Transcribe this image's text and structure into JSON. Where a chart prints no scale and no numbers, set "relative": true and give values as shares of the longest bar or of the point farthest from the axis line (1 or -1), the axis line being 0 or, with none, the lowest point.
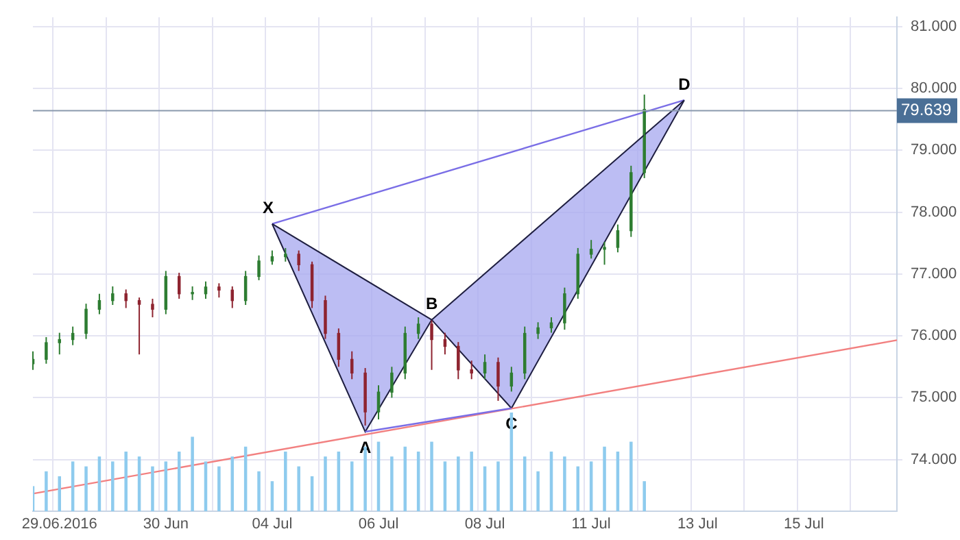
{
  "chart_data": [
    {
      "type": "candlestick",
      "categories": [
        null,
        null,
        "29.06.2016",
        null,
        null,
        null,
        null,
        null,
        null,
        null,
        "30 Jun",
        null,
        null,
        null,
        null,
        null,
        null,
        null,
        "04 Jul",
        null,
        null,
        null,
        null,
        null,
        null,
        null,
        "06 Jul",
        null,
        null,
        null,
        null,
        null,
        null,
        null,
        "08 Jul",
        null,
        null,
        null,
        null,
        null,
        null,
        null,
        "11 Jul",
        null,
        null,
        null,
        null,
        null,
        null,
        null,
        "13 Jul",
        null,
        null,
        null,
        null,
        null,
        null,
        null,
        "15 Jul",
        null,
        null,
        null,
        null,
        null,
        null,
        null
      ],
      "ylim": [
        73.17,
        81.15
      ],
      "yticks": [
        {
          "value": 74,
          "label": "74.000"
        },
        {
          "value": 75,
          "label": "75.000"
        },
        {
          "value": 76,
          "label": "76.000"
        },
        {
          "value": 77,
          "label": "77.000"
        },
        {
          "value": 78,
          "label": "78.000"
        },
        {
          "value": 79,
          "label": "79.000"
        },
        {
          "value": 80,
          "label": "80.000"
        },
        {
          "value": 81,
          "label": "81.000"
        }
      ],
      "grid": true,
      "legend": false,
      "series": [
        {
          "type": "area",
          "color": "#a9abf0",
          "values": [
            null,
            null,
            null,
            null,
            null,
            null,
            null,
            null,
            null,
            null,
            null,
            null,
            null,
            null,
            null,
            null,
            null,
            null,
            77.81,
            null,
            null,
            null,
            null,
            null,
            null,
            74.45,
            null,
            null,
            null,
            null,
            76.26,
            null,
            null,
            null,
            null,
            null,
            null,
            null,
            null,
            null,
            null,
            null,
            null,
            null,
            null,
            null,
            null,
            null,
            null,
            null,
            null,
            null,
            null,
            null,
            null,
            null,
            null,
            null,
            null,
            null,
            null,
            null,
            null,
            null,
            null,
            null
          ]
        },
        {
          "type": "area",
          "color": "#a9abf0",
          "values": [
            null,
            null,
            null,
            null,
            null,
            null,
            null,
            null,
            null,
            null,
            null,
            null,
            null,
            null,
            null,
            null,
            null,
            null,
            null,
            null,
            null,
            null,
            null,
            null,
            null,
            null,
            null,
            null,
            null,
            null,
            76.26,
            null,
            null,
            null,
            null,
            null,
            74.83,
            null,
            null,
            null,
            null,
            null,
            null,
            null,
            null,
            null,
            null,
            null,
            null,
            79.81,
            null,
            null,
            null,
            null,
            null,
            null,
            null,
            null,
            null,
            null,
            null,
            null,
            null,
            null,
            null,
            null
          ]
        },
        {
          "type": "line",
          "color": "#7a6ee6",
          "values": [
            null,
            null,
            null,
            null,
            null,
            null,
            null,
            null,
            null,
            null,
            null,
            null,
            null,
            null,
            null,
            null,
            null,
            null,
            77.81,
            null,
            null,
            null,
            null,
            null,
            null,
            null,
            null,
            null,
            null,
            null,
            null,
            null,
            null,
            null,
            null,
            null,
            null,
            null,
            null,
            null,
            null,
            null,
            null,
            null,
            null,
            null,
            null,
            null,
            null,
            79.81,
            null,
            null,
            null,
            null,
            null,
            null,
            null,
            null,
            null,
            null,
            null,
            null,
            null,
            null,
            null,
            null
          ]
        },
        {
          "type": "line",
          "color": "#7a6ee6",
          "values": [
            null,
            null,
            null,
            null,
            null,
            null,
            null,
            null,
            null,
            null,
            null,
            null,
            null,
            null,
            null,
            null,
            null,
            null,
            null,
            null,
            null,
            null,
            null,
            null,
            null,
            74.45,
            null,
            null,
            null,
            null,
            null,
            null,
            null,
            null,
            null,
            null,
            74.83,
            null,
            null,
            null,
            null,
            null,
            null,
            null,
            null,
            null,
            null,
            null,
            null,
            null,
            null,
            null,
            null,
            null,
            null,
            null,
            null,
            null,
            null,
            null,
            null,
            null,
            null,
            null,
            null,
            null
          ]
        },
        {
          "type": "line",
          "color": "#f28080",
          "values": [
            73.45,
            null,
            null,
            null,
            null,
            null,
            null,
            null,
            null,
            null,
            null,
            null,
            null,
            null,
            null,
            null,
            null,
            null,
            null,
            null,
            null,
            null,
            null,
            null,
            null,
            null,
            null,
            null,
            null,
            null,
            null,
            null,
            null,
            null,
            null,
            null,
            null,
            null,
            null,
            null,
            null,
            null,
            null,
            null,
            null,
            null,
            null,
            null,
            null,
            null,
            null,
            null,
            null,
            null,
            null,
            null,
            null,
            null,
            null,
            null,
            null,
            null,
            null,
            null,
            null,
            75.93
          ]
        },
        {
          "colors": [
            "#2e7d32",
            "#2e7d32",
            "#2e7d32",
            "#2e7d32",
            "#2e7d32",
            "#2e7d32",
            "#2e7d32",
            "#8e2430",
            "#8e2430",
            "#8e2430",
            "#2e7d32",
            "#8e2430",
            "#2e7d32",
            "#2e7d32",
            "#8e2430",
            "#8e2430",
            "#2e7d32",
            "#2e7d32",
            "#2e7d32",
            "#2e7d32",
            "#8e2430",
            "#8e2430",
            "#8e2430",
            "#8e2430",
            "#8e2430",
            "#8e2430",
            "#2e7d32",
            "#2e7d32",
            "#2e7d32",
            "#2e7d32",
            "#8e2430",
            "#8e2430",
            "#8e2430",
            "#8e2430",
            "#2e7d32",
            "#8e2430",
            "#2e7d32",
            "#2e7d32",
            "#2e7d32",
            "#2e7d32",
            "#2e7d32",
            "#2e7d32",
            "#2e7d32",
            "#2e7d32",
            "#2e7d32",
            "#2e7d32",
            "#2e7d32",
            null,
            null,
            null,
            null,
            null,
            null,
            null,
            null,
            null,
            null,
            null,
            null,
            null,
            null,
            null,
            null,
            null,
            null,
            null
          ],
          "ohlc": [
            [
              75.55,
              75.75,
              75.45,
              75.62
            ],
            [
              75.62,
              75.98,
              75.55,
              75.89
            ],
            [
              75.89,
              76.05,
              75.7,
              75.94
            ],
            [
              75.94,
              76.15,
              75.85,
              76.04
            ],
            [
              76.04,
              76.52,
              75.95,
              76.43
            ],
            [
              76.43,
              76.68,
              76.35,
              76.57
            ],
            [
              76.57,
              76.8,
              76.5,
              76.68
            ],
            [
              76.68,
              76.75,
              76.45,
              76.57
            ],
            [
              76.57,
              76.62,
              75.7,
              76.51
            ],
            [
              76.51,
              76.6,
              76.3,
              76.43
            ],
            [
              76.43,
              77.05,
              76.35,
              76.96
            ],
            [
              76.96,
              77.02,
              76.6,
              76.68
            ],
            [
              76.68,
              76.8,
              76.58,
              76.68
            ],
            [
              76.68,
              76.88,
              76.6,
              76.79
            ],
            [
              76.79,
              76.85,
              76.62,
              76.74
            ],
            [
              76.74,
              76.8,
              76.45,
              76.57
            ],
            [
              76.57,
              77.05,
              76.5,
              76.96
            ],
            [
              76.96,
              77.3,
              76.9,
              77.21
            ],
            [
              77.21,
              77.38,
              77.15,
              77.28
            ],
            [
              77.28,
              77.42,
              77.2,
              77.32
            ],
            [
              77.32,
              77.38,
              77.05,
              77.15
            ],
            [
              77.15,
              77.2,
              76.45,
              76.57
            ],
            [
              76.57,
              76.65,
              75.95,
              76.04
            ],
            [
              76.04,
              76.12,
              75.5,
              75.62
            ],
            [
              75.62,
              75.75,
              75.3,
              75.4
            ],
            [
              75.4,
              75.48,
              74.55,
              74.77
            ],
            [
              74.77,
              75.2,
              74.65,
              75.09
            ],
            [
              75.09,
              75.5,
              75,
              75.4
            ],
            [
              75.4,
              76.15,
              75.3,
              76.04
            ],
            [
              76.04,
              76.3,
              75.95,
              76.19
            ],
            [
              76.19,
              76.25,
              75.45,
              75.94
            ],
            [
              75.94,
              76.05,
              75.7,
              75.83
            ],
            [
              75.83,
              75.9,
              75.3,
              75.45
            ],
            [
              75.45,
              75.6,
              75.3,
              75.4
            ],
            [
              75.4,
              75.7,
              75.3,
              75.57
            ],
            [
              75.57,
              75.65,
              74.95,
              75.19
            ],
            [
              75.19,
              75.5,
              75.1,
              75.4
            ],
            [
              75.4,
              76.15,
              75.3,
              76.04
            ],
            [
              76.04,
              76.22,
              75.95,
              76.13
            ],
            [
              76.13,
              76.3,
              76.05,
              76.21
            ],
            [
              76.21,
              76.78,
              76.1,
              76.68
            ],
            [
              76.68,
              77.42,
              76.6,
              77.32
            ],
            [
              77.32,
              77.55,
              77.25,
              77.4
            ],
            [
              77.4,
              77.52,
              77.15,
              77.43
            ],
            [
              77.43,
              77.8,
              77.35,
              77.7
            ],
            [
              77.7,
              78.75,
              77.6,
              78.64
            ],
            [
              78.64,
              79.9,
              78.55,
              79.66
            ],
            null,
            null,
            null,
            null,
            null,
            null,
            null,
            null,
            null,
            null,
            null,
            null,
            null,
            null,
            null,
            null,
            null,
            null,
            null
          ]
        }
      ],
      "ref_lines": [
        {
          "axis": "y",
          "value": 79.639,
          "label": "79.639",
          "color": "#8a99ad"
        }
      ],
      "annotations": [
        "X",
        "A",
        "B",
        "C",
        "D"
      ]
    },
    {
      "type": "bar",
      "relative": true,
      "color": "#8ecbee",
      "categories": [
        null,
        null,
        null,
        null,
        null,
        null,
        null,
        null,
        null,
        null,
        null,
        null,
        null,
        null,
        null,
        null,
        null,
        null,
        null,
        null,
        null,
        null,
        null,
        null,
        null,
        null,
        null,
        null,
        null,
        null,
        null,
        null,
        null,
        null,
        null,
        null,
        null,
        null,
        null,
        null,
        null,
        null,
        null,
        null,
        null,
        null,
        null,
        null,
        null,
        null,
        null,
        null,
        null,
        null,
        null,
        null,
        null,
        null,
        null,
        null,
        null,
        null,
        null,
        null,
        null,
        null
      ],
      "values": [
        0.25,
        0.4,
        0.35,
        0.5,
        0.45,
        0.55,
        0.5,
        0.6,
        0.55,
        0.45,
        0.5,
        0.6,
        0.75,
        0.5,
        0.45,
        0.55,
        0.65,
        0.4,
        0.3,
        0.6,
        0.45,
        0.35,
        0.55,
        0.6,
        0.5,
        0.65,
        0.7,
        0.55,
        0.65,
        0.6,
        0.7,
        0.5,
        0.55,
        0.6,
        0.45,
        0.5,
        1,
        0.55,
        0.4,
        0.6,
        0.55,
        0.45,
        0.5,
        0.65,
        0.6,
        0.7,
        0.3,
        null,
        null,
        null,
        null,
        null,
        null,
        null,
        null,
        null,
        null,
        null,
        null,
        null,
        null,
        null,
        null,
        null,
        null,
        null
      ]
    }
  ]
}
